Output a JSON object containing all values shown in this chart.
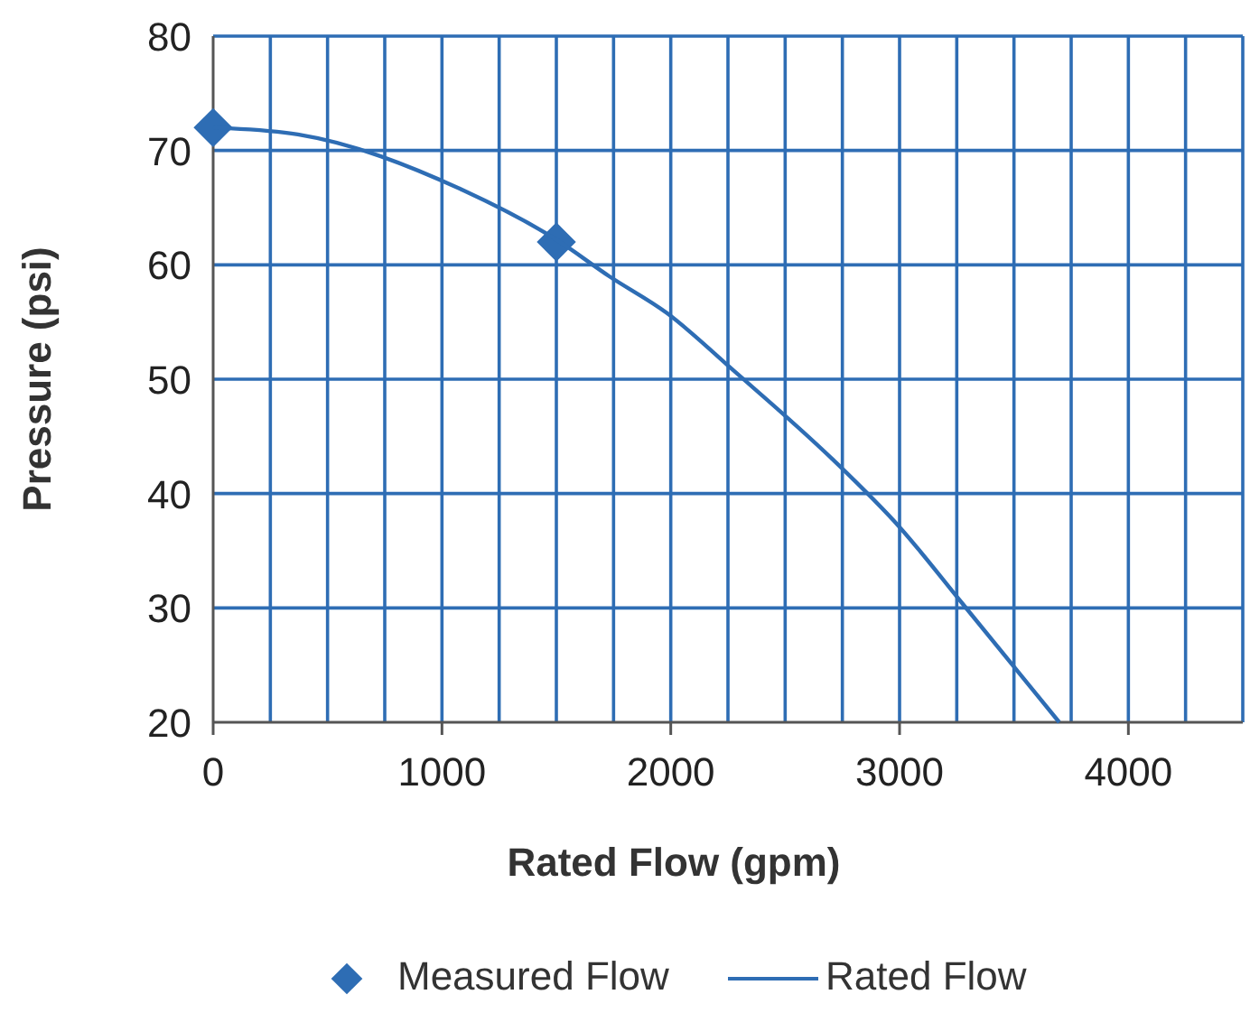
{
  "chart_data": {
    "type": "line",
    "xlabel": "Rated Flow (gpm)",
    "ylabel": "Pressure (psi)",
    "xlim": [
      0,
      4500
    ],
    "xticks": [
      0,
      {
        "value": 250,
        "label": null
      },
      {
        "value": 500,
        "label": null
      },
      {
        "value": 750,
        "label": null
      },
      1000,
      {
        "value": 1250,
        "label": null
      },
      {
        "value": 1500,
        "label": null
      },
      {
        "value": 1750,
        "label": null
      },
      2000,
      {
        "value": 2250,
        "label": null
      },
      {
        "value": 2500,
        "label": null
      },
      {
        "value": 2750,
        "label": null
      },
      3000,
      {
        "value": 3250,
        "label": null
      },
      {
        "value": 3500,
        "label": null
      },
      {
        "value": 3750,
        "label": null
      },
      4000,
      {
        "value": 4250,
        "label": null
      },
      {
        "value": 4500,
        "label": null
      }
    ],
    "ylim": [
      20,
      80
    ],
    "yticks": [
      20,
      30,
      40,
      50,
      60,
      70,
      80
    ],
    "grid": true,
    "legend": "bottom",
    "series": [
      {
        "name": "Measured Flow",
        "type": "scatter",
        "marker": "diamond",
        "color": "#2e6db4",
        "x": [
          0,
          1500
        ],
        "values": [
          72,
          62
        ]
      },
      {
        "name": "Rated Flow",
        "marker": "none",
        "color": "#2e6db4",
        "x": [
          0,
          370,
          1095,
          1500,
          1731,
          1982,
          2278,
          2707,
          3003,
          3270,
          3698
        ],
        "values": [
          72,
          71.4,
          66.5,
          62.2,
          59,
          55.8,
          50.7,
          43,
          37,
          30.5,
          20
        ]
      }
    ]
  }
}
